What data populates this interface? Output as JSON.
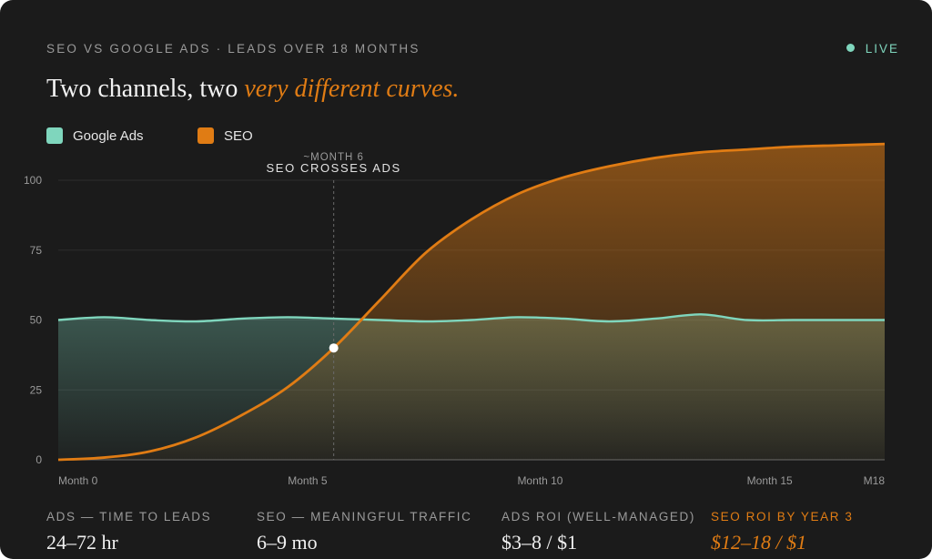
{
  "header": {
    "eyebrow": "SEO VS GOOGLE ADS · LEADS OVER 18 MONTHS",
    "live_label": "LIVE",
    "headline_plain": "Two channels, two ",
    "headline_accent": "very different curves."
  },
  "colors": {
    "ads": "#7fd6bd",
    "seo": "#e07c14",
    "background": "#1b1b1b"
  },
  "chart_data": {
    "type": "area",
    "title": "",
    "xlabel": "",
    "ylabel": "",
    "ylim": [
      0,
      100
    ],
    "xlim": [
      0,
      18
    ],
    "y_ticks": [
      0,
      25,
      50,
      75,
      100
    ],
    "x_ticks": [
      {
        "x": 0,
        "label": "Month 0"
      },
      {
        "x": 5,
        "label": "Month 5"
      },
      {
        "x": 10,
        "label": "Month 10"
      },
      {
        "x": 15,
        "label": "Month 15"
      },
      {
        "x": 18,
        "label": "M18"
      }
    ],
    "grid": true,
    "legend_position": "top-left",
    "series": [
      {
        "name": "Google Ads",
        "color": "#7fd6bd",
        "x": [
          0,
          1,
          2,
          3,
          4,
          5,
          6,
          7,
          8,
          9,
          10,
          11,
          12,
          13,
          14,
          15,
          16,
          17,
          18
        ],
        "values": [
          50,
          51,
          50,
          49.5,
          50.5,
          51,
          50.5,
          50,
          49.5,
          50,
          51,
          50.5,
          49.5,
          50.5,
          52,
          50,
          50,
          50,
          50
        ]
      },
      {
        "name": "SEO",
        "color": "#e07c14",
        "x": [
          0,
          1,
          2,
          3,
          4,
          5,
          6,
          7,
          8,
          9,
          10,
          11,
          12,
          13,
          14,
          15,
          16,
          17,
          18
        ],
        "values": [
          0,
          0.8,
          3,
          8,
          16,
          26,
          40,
          57,
          74,
          86,
          95,
          101,
          105,
          108,
          110,
          111,
          112,
          112.5,
          113
        ]
      }
    ],
    "annotations": [
      {
        "x": 6,
        "y": 40,
        "line1": "~MONTH 6",
        "line2": "SEO CROSSES ADS"
      }
    ]
  },
  "stats": [
    {
      "label": "ADS — TIME TO LEADS",
      "value": "24–72 hr"
    },
    {
      "label": "SEO — MEANINGFUL TRAFFIC",
      "value": "6–9 mo"
    },
    {
      "label": "ADS ROI (WELL-MANAGED)",
      "value": "$3–8 / $1"
    },
    {
      "label": "SEO ROI BY YEAR 3",
      "value": "$12–18 / $1"
    }
  ]
}
